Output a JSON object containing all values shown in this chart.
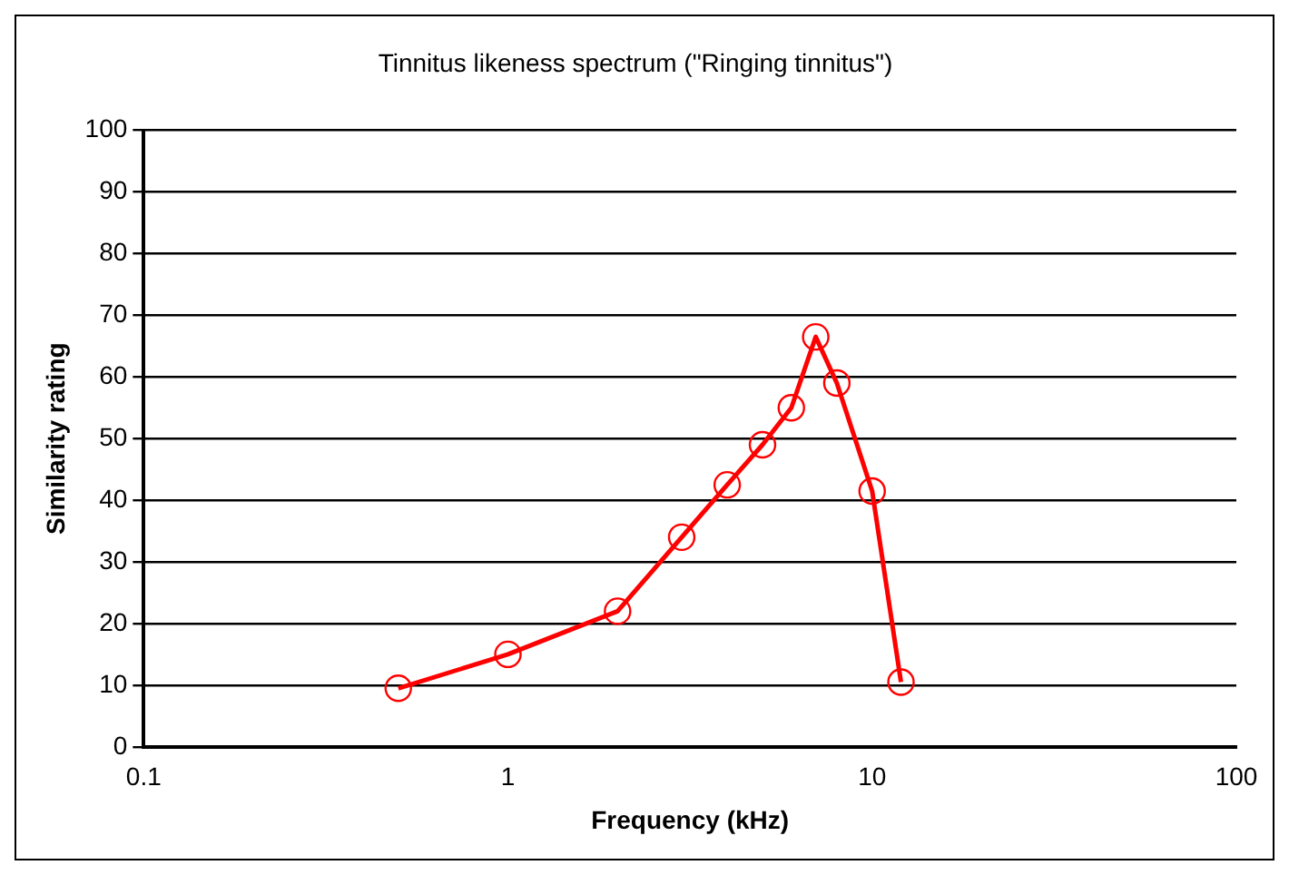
{
  "chart_data": {
    "type": "line",
    "title": "Tinnitus likeness spectrum (\"Ringing tinnitus\")",
    "xlabel": "Frequency (kHz)",
    "ylabel": "Similarity rating",
    "x": [
      0.5,
      1,
      2,
      3,
      4,
      5,
      6,
      7,
      8,
      10,
      12
    ],
    "series": [
      {
        "color": "#ff0000",
        "values": [
          9.5,
          15,
          22,
          34,
          42.5,
          49,
          55,
          66.5,
          59,
          41.5,
          10.5
        ]
      }
    ],
    "log": "x",
    "xlim": [
      0.1,
      100
    ],
    "xticks": [
      0.1,
      1,
      10,
      100
    ],
    "ylim": [
      0,
      100
    ],
    "yticks": [
      0,
      10,
      20,
      30,
      40,
      50,
      60,
      70,
      80,
      90,
      100
    ],
    "grid": "y",
    "legend": false,
    "marker": "circle",
    "line_style": "solid"
  }
}
